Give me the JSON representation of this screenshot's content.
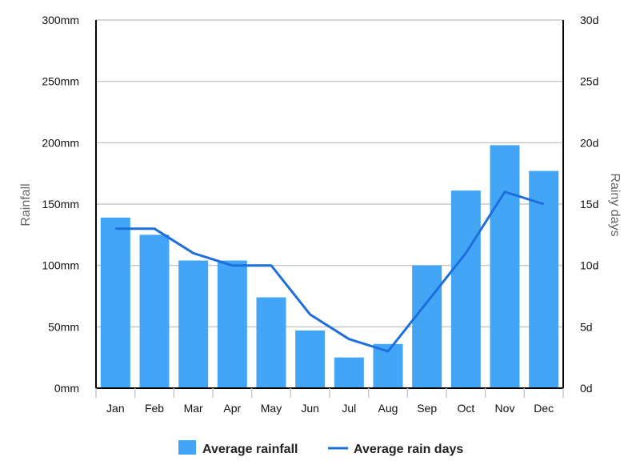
{
  "chart_data": {
    "type": "bar",
    "categories": [
      "Jan",
      "Feb",
      "Mar",
      "Apr",
      "May",
      "Jun",
      "Jul",
      "Aug",
      "Sep",
      "Oct",
      "Nov",
      "Dec"
    ],
    "series": [
      {
        "name": "Average rainfall",
        "kind": "bar",
        "axis": "left",
        "color": "#42a5f5",
        "values": [
          139,
          125,
          104,
          104,
          74,
          47,
          25,
          36,
          100,
          161,
          198,
          177
        ]
      },
      {
        "name": "Average rain days",
        "kind": "line",
        "axis": "right",
        "color": "#1e6fdc",
        "values": [
          13,
          13,
          11,
          10,
          10,
          6,
          4,
          3,
          7,
          11,
          16,
          15
        ]
      }
    ],
    "ylabel_left": "Rainfall",
    "ylabel_right": "Rainy days",
    "ylim_left": [
      0,
      300
    ],
    "ylim_right": [
      0,
      30
    ],
    "yticks_left": [
      "0mm",
      "50mm",
      "100mm",
      "150mm",
      "200mm",
      "250mm",
      "300mm"
    ],
    "yticks_right": [
      "0d",
      "5d",
      "10d",
      "15d",
      "20d",
      "25d",
      "30d"
    ],
    "grid": true,
    "legend_position": "bottom-center"
  }
}
